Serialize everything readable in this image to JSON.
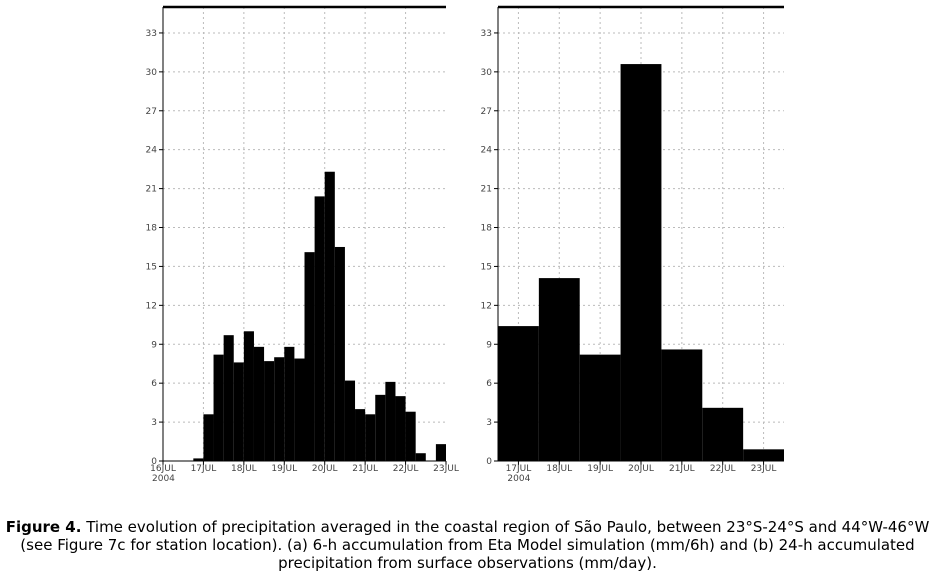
{
  "chart_data": [
    {
      "type": "bar",
      "panel": "a",
      "title": "",
      "xlabel": "",
      "ylabel": "",
      "ylim": [
        0,
        35
      ],
      "yticks": [
        0,
        3,
        6,
        9,
        12,
        15,
        18,
        21,
        24,
        27,
        30,
        33
      ],
      "xlim": [
        "2004-07-16T00:00",
        "2004-07-23T00:00"
      ],
      "xtick_labels": [
        "16JUL",
        "17JUL",
        "18JUL",
        "19JUL",
        "20JUL",
        "21JUL",
        "22JUL",
        "23JUL"
      ],
      "xtick_year": "2004",
      "grid": true,
      "bar_width_hours": 6,
      "x": [
        "2004-07-16T00:00",
        "2004-07-16T06:00",
        "2004-07-16T12:00",
        "2004-07-16T18:00",
        "2004-07-17T00:00",
        "2004-07-17T06:00",
        "2004-07-17T12:00",
        "2004-07-17T18:00",
        "2004-07-18T00:00",
        "2004-07-18T06:00",
        "2004-07-18T12:00",
        "2004-07-18T18:00",
        "2004-07-19T00:00",
        "2004-07-19T06:00",
        "2004-07-19T12:00",
        "2004-07-19T18:00",
        "2004-07-20T00:00",
        "2004-07-20T06:00",
        "2004-07-20T12:00",
        "2004-07-20T18:00",
        "2004-07-21T00:00",
        "2004-07-21T06:00",
        "2004-07-21T12:00",
        "2004-07-21T18:00",
        "2004-07-22T00:00",
        "2004-07-22T06:00",
        "2004-07-22T12:00",
        "2004-07-22T18:00"
      ],
      "values": [
        0,
        0,
        0,
        0.2,
        3.6,
        8.2,
        9.7,
        7.6,
        10.0,
        8.8,
        7.7,
        8.0,
        8.8,
        7.9,
        16.1,
        20.4,
        22.3,
        16.5,
        6.2,
        4.0,
        3.6,
        5.1,
        6.1,
        5.0,
        3.8,
        0.6,
        0,
        1.3
      ]
    },
    {
      "type": "bar",
      "panel": "b",
      "title": "",
      "xlabel": "",
      "ylabel": "",
      "ylim": [
        0,
        35
      ],
      "yticks": [
        0,
        3,
        6,
        9,
        12,
        15,
        18,
        21,
        24,
        27,
        30,
        33
      ],
      "xlim": [
        "2004-07-16T12:00",
        "2004-07-23T12:00"
      ],
      "xtick_labels": [
        "17JUL",
        "18JUL",
        "19JUL",
        "20JUL",
        "21JUL",
        "22JUL",
        "23JUL"
      ],
      "xtick_year": "2004",
      "grid": true,
      "bar_width_hours": 24,
      "x": [
        "2004-07-16T12:00",
        "2004-07-17T12:00",
        "2004-07-18T12:00",
        "2004-07-19T12:00",
        "2004-07-20T12:00",
        "2004-07-21T12:00",
        "2004-07-22T12:00"
      ],
      "values": [
        10.4,
        14.1,
        8.2,
        30.6,
        8.6,
        4.1,
        0.9
      ]
    }
  ],
  "caption": {
    "lead": "Figure 4.",
    "text": " Time evolution of precipitation averaged in the coastal region of São Paulo, between 23°S-24°S and 44°W-46°W (see Figure 7c for station location). (a) 6-h accumulation from Eta Model simulation (mm/6h) and (b) 24-h accumulated precipitation from surface observations (mm/day)."
  },
  "colors": {
    "bar": "#000000",
    "grid": "#bbbbbb",
    "tick_text": "#444444"
  }
}
